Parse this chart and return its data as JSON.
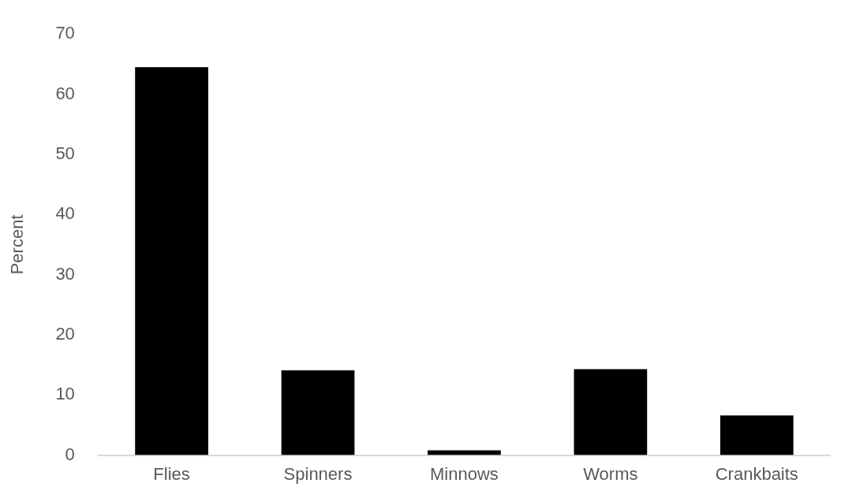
{
  "chart_data": {
    "type": "bar",
    "ylabel": "Percent",
    "categories": [
      "Flies",
      "Spinners",
      "Minnows",
      "Worms",
      "Crankbaits"
    ],
    "values": [
      64.5,
      14.1,
      0.8,
      14.3,
      6.6
    ],
    "color": "#000000",
    "ylim": [
      0,
      70
    ],
    "yticks": [
      0,
      10,
      20,
      30,
      40,
      50,
      60,
      70
    ],
    "grid": false,
    "legend": false
  }
}
